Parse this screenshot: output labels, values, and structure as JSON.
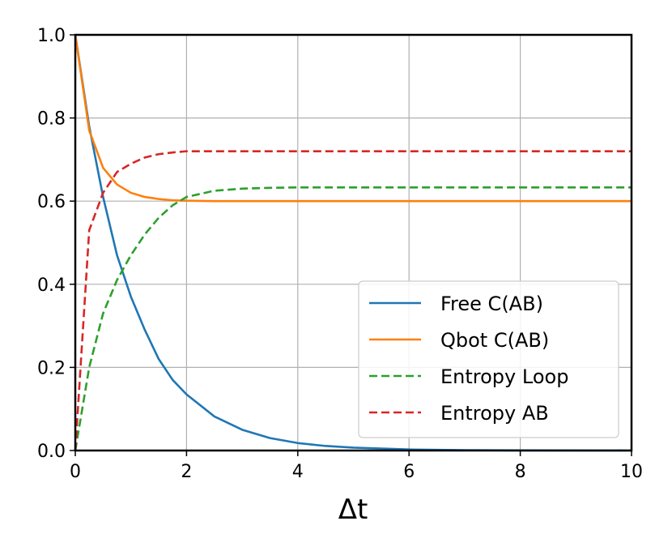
{
  "chart_data": {
    "type": "line",
    "title": "",
    "xlabel": "Δt",
    "ylabel": "",
    "xlim": [
      0,
      10
    ],
    "ylim": [
      0,
      1.0
    ],
    "x_ticks": [
      "0",
      "2",
      "4",
      "6",
      "8",
      "10"
    ],
    "y_ticks": [
      "0.0",
      "0.2",
      "0.4",
      "0.6",
      "0.8",
      "1.0"
    ],
    "grid": true,
    "legend_position": "lower-right",
    "x": [
      0,
      0.25,
      0.5,
      0.75,
      1.0,
      1.25,
      1.5,
      1.75,
      2.0,
      2.5,
      3.0,
      3.5,
      4.0,
      4.5,
      5.0,
      6.0,
      7.0,
      8.0,
      9.0,
      10.0
    ],
    "series": [
      {
        "name": "Free C(AB)",
        "color": "#1f77b4",
        "style": "solid",
        "values": [
          1.0,
          0.78,
          0.61,
          0.47,
          0.37,
          0.29,
          0.22,
          0.17,
          0.135,
          0.082,
          0.05,
          0.03,
          0.018,
          0.011,
          0.007,
          0.0025,
          0.0009,
          0.0003,
          0.0001,
          0.0
        ]
      },
      {
        "name": "Qbot C(AB)",
        "color": "#ff7f0e",
        "style": "solid",
        "values": [
          1.0,
          0.77,
          0.68,
          0.64,
          0.62,
          0.61,
          0.605,
          0.602,
          0.601,
          0.6,
          0.6,
          0.6,
          0.6,
          0.6,
          0.6,
          0.6,
          0.6,
          0.6,
          0.6,
          0.6
        ]
      },
      {
        "name": "Entropy Loop",
        "color": "#2ca02c",
        "style": "dashed",
        "values": [
          0.0,
          0.2,
          0.33,
          0.41,
          0.47,
          0.52,
          0.56,
          0.59,
          0.61,
          0.625,
          0.63,
          0.632,
          0.633,
          0.633,
          0.633,
          0.633,
          0.633,
          0.633,
          0.633,
          0.633
        ]
      },
      {
        "name": "Entropy AB",
        "color": "#d62728",
        "style": "dashed",
        "values": [
          0.0,
          0.53,
          0.62,
          0.67,
          0.69,
          0.705,
          0.713,
          0.717,
          0.72,
          0.72,
          0.72,
          0.72,
          0.72,
          0.72,
          0.72,
          0.72,
          0.72,
          0.72,
          0.72,
          0.72
        ]
      }
    ]
  }
}
